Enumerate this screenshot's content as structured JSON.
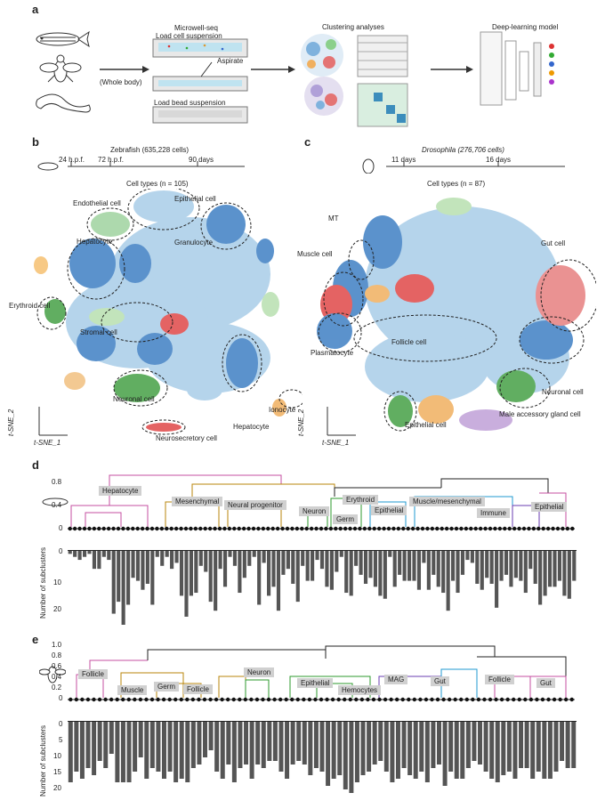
{
  "panel_a": {
    "label": "a",
    "whole_body": "(Whole body)",
    "step_title": "Microwell-seq",
    "step_load_cells": "Load cell suspension",
    "step_aspirate": "Aspirate",
    "step_load_beads": "Load bead suspension",
    "clustering_title": "Clustering analyses",
    "dl_title": "Deep-learning model"
  },
  "panel_b": {
    "label": "b",
    "title": "Zebrafish (635,228 cells)",
    "timeline": [
      "24 h.p.f.",
      "72 h.p.f.",
      "90 days"
    ],
    "cell_types": "Cell types (n = 105)",
    "annotations": [
      "Endothelial cell",
      "Epithelial cell",
      "Hepatocyte",
      "Granulocyte",
      "Erythroid cell",
      "Stromal cell",
      "Neuronal cell",
      "Ionocyte",
      "Hepatocyte",
      "Neurosecretory cell"
    ],
    "xlabel": "t-SNE_1",
    "ylabel": "t-SNE_2"
  },
  "panel_c": {
    "label": "c",
    "title": "Drosophila (276,706 cells)",
    "timeline": [
      "11 days",
      "16 days"
    ],
    "cell_types": "Cell types (n = 87)",
    "annotations": [
      "MT",
      "Muscle cell",
      "Gut cell",
      "Plasmatocyte",
      "Follicle cell",
      "Neuronal cell",
      "Male accessory gland cell",
      "Epithelial cell"
    ],
    "xlabel": "t-SNE_1",
    "ylabel": "t-SNE_2"
  },
  "panel_d": {
    "label": "d",
    "yticks": [
      "0.8",
      "0.4",
      "0"
    ],
    "groups": [
      "Hepatocyte",
      "Mesenchymal",
      "Neural progenitor",
      "Neuron",
      "Erythroid",
      "Germ",
      "Epithelial",
      "Muscle/mesenchymal",
      "Immune",
      "Epithelial"
    ],
    "bar_ylabel": "Number of subclusters",
    "bar_yticks": [
      "0",
      "10",
      "20"
    ]
  },
  "panel_e": {
    "label": "e",
    "yticks": [
      "1.0",
      "0.8",
      "0.6",
      "0.4",
      "0.2",
      "0"
    ],
    "groups": [
      "Follicle",
      "Muscle",
      "Germ",
      "Follicle",
      "Neuron",
      "Epithelial",
      "Hemocytes",
      "MAG",
      "Gut",
      "Follicle",
      "Gut"
    ],
    "bar_ylabel": "Number of subclusters",
    "bar_yticks": [
      "0",
      "5",
      "10",
      "15",
      "20"
    ]
  },
  "chart_data": [
    {
      "type": "bar",
      "title": "",
      "ylabel": "Number of subclusters",
      "ylim": [
        0,
        25
      ],
      "values": [
        1,
        2,
        3,
        2,
        1,
        6,
        6,
        2,
        3,
        21,
        17,
        26,
        18,
        9,
        10,
        13,
        11,
        18,
        2,
        5,
        2,
        6,
        4,
        15,
        22,
        15,
        14,
        5,
        7,
        17,
        20,
        6,
        12,
        2,
        5,
        14,
        9,
        5,
        2,
        18,
        4,
        15,
        12,
        20,
        8,
        6,
        11,
        17,
        5,
        10,
        10,
        3,
        6,
        12,
        13,
        7,
        2,
        14,
        15,
        5,
        8,
        11,
        9,
        12,
        15,
        16,
        2,
        12,
        8,
        10,
        10,
        10,
        13,
        4,
        13,
        8,
        12,
        14,
        20,
        10,
        14,
        8,
        3,
        4,
        11,
        13,
        9,
        11,
        19,
        10,
        8,
        12,
        9,
        10,
        14,
        6,
        11,
        18,
        15,
        12,
        12,
        10,
        15,
        16,
        10
      ]
    },
    {
      "type": "bar",
      "title": "",
      "ylabel": "Number of subclusters",
      "ylim": [
        0,
        20
      ],
      "values": [
        17,
        14,
        16,
        13,
        15,
        11,
        13,
        9,
        17,
        17,
        17,
        14,
        10,
        16,
        13,
        14,
        16,
        14,
        17,
        16,
        17,
        13,
        12,
        10,
        8,
        14,
        16,
        12,
        17,
        13,
        12,
        16,
        12,
        13,
        11,
        11,
        14,
        16,
        12,
        11,
        12,
        15,
        13,
        14,
        18,
        16,
        15,
        19,
        20,
        17,
        15,
        14,
        12,
        11,
        14,
        17,
        16,
        13,
        15,
        16,
        14,
        17,
        13,
        12,
        18,
        14,
        16,
        16,
        13,
        11,
        12,
        14,
        16,
        17,
        15,
        14,
        16,
        13,
        13,
        16,
        14,
        16,
        16,
        14,
        11,
        13,
        13
      ]
    }
  ]
}
